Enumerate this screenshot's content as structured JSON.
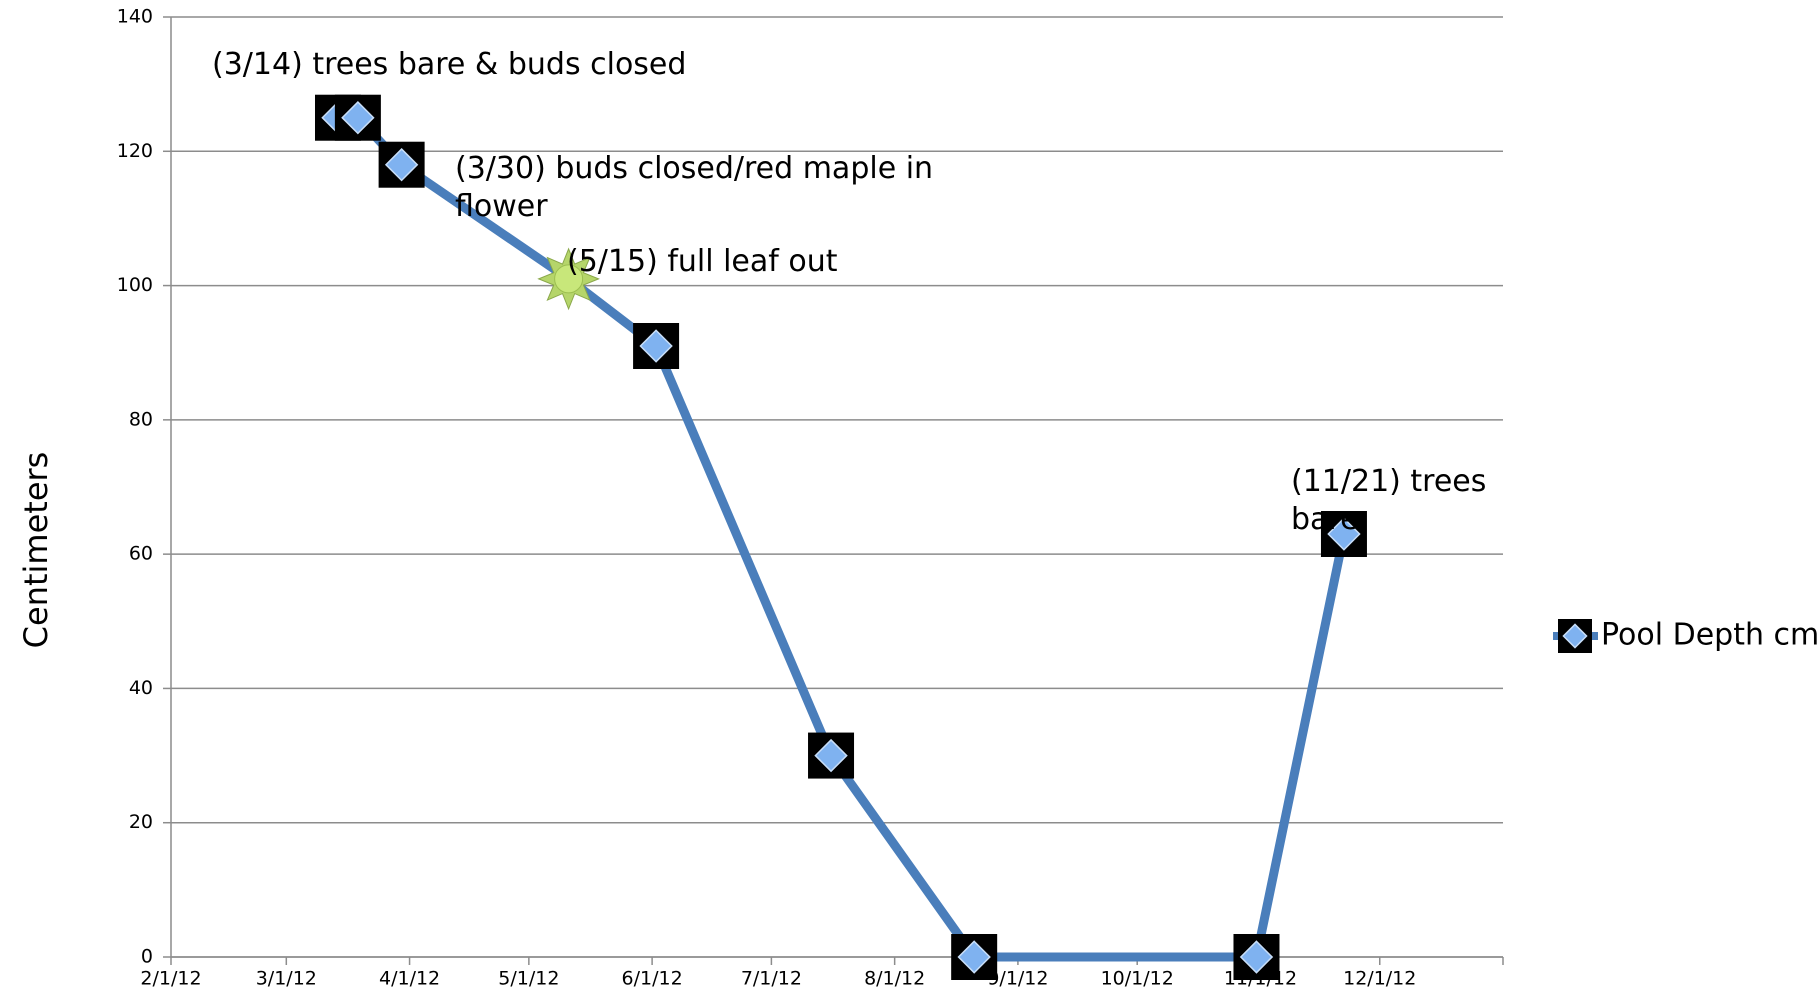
{
  "chart_data": {
    "type": "line",
    "y_label": "Centimeters",
    "x": [
      "2012-03-14",
      "2012-03-19",
      "2012-03-30",
      "2012-05-11",
      "2012-06-02",
      "2012-07-16",
      "2012-08-21",
      "2012-10-31",
      "2012-11-22"
    ],
    "series": [
      {
        "name": "Pool Depth cm",
        "color": "#4a7ebb",
        "values": [
          125,
          125,
          118,
          101,
          91,
          30,
          0,
          0,
          63
        ]
      }
    ],
    "xlim": [
      "2012-02-01",
      "2013-01-01"
    ],
    "xticks": [
      {
        "value": "2012-02-01",
        "label": "2/1/12"
      },
      {
        "value": "2012-03-01",
        "label": "3/1/12"
      },
      {
        "value": "2012-04-01",
        "label": "4/1/12"
      },
      {
        "value": "2012-05-01",
        "label": "5/1/12"
      },
      {
        "value": "2012-06-01",
        "label": "6/1/12"
      },
      {
        "value": "2012-07-01",
        "label": "7/1/12"
      },
      {
        "value": "2012-08-01",
        "label": "8/1/12"
      },
      {
        "value": "2012-09-01",
        "label": "9/1/12"
      },
      {
        "value": "2012-10-01",
        "label": "10/1/12"
      },
      {
        "value": "2012-11-01",
        "label": "11/1/12"
      },
      {
        "value": "2012-12-01",
        "label": "12/1/12"
      }
    ],
    "ylim": [
      0,
      140
    ],
    "yticks": [
      0,
      20,
      40,
      60,
      80,
      100,
      120,
      140
    ],
    "grid": true,
    "legend": "right",
    "annotations": [
      "(3/14) trees bare & buds closed",
      "(3/30) buds closed/red maple in flower",
      "(5/15) full leaf out",
      "(11/21) trees bare"
    ]
  }
}
